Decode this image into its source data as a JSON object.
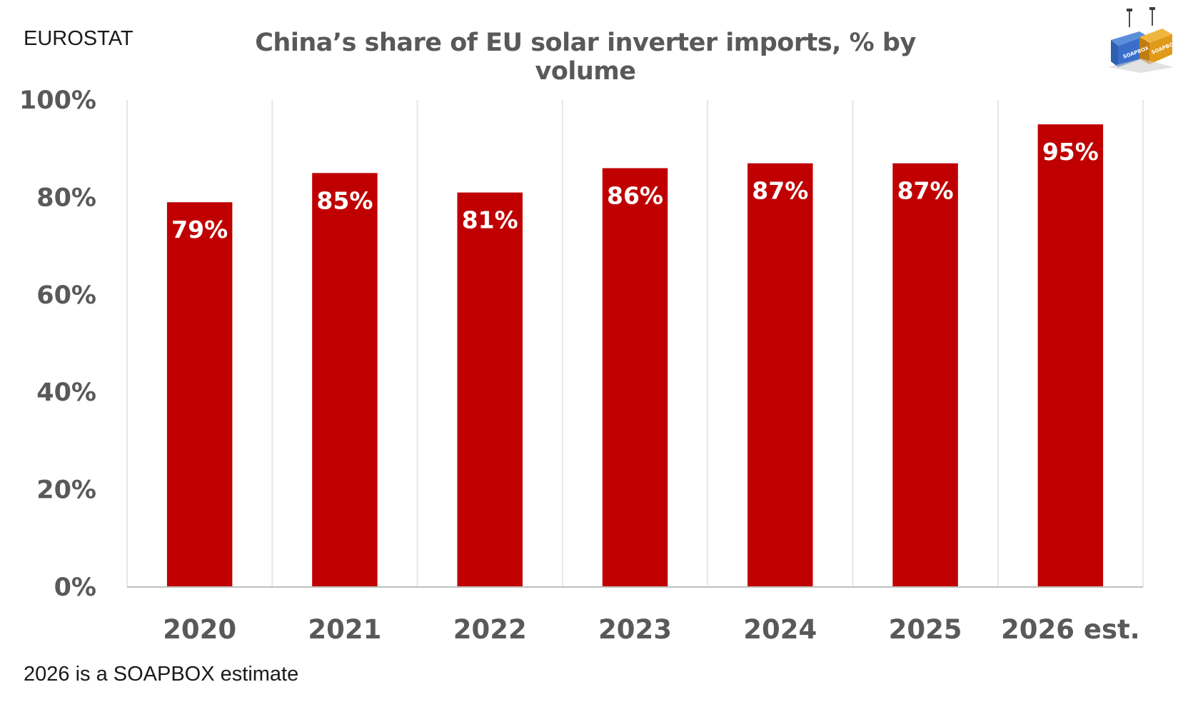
{
  "source_label": "EUROSTAT",
  "footnote": "2026 is a SOAPBOX estimate",
  "logo": {
    "icon": "shipping-containers-crane-icon",
    "text": "SOAPBOX"
  },
  "colors": {
    "bar": "#c00000",
    "grid": "#e6e6e6",
    "axis": "#bfbfbf",
    "text": "#595959"
  },
  "chart_data": {
    "type": "bar",
    "title": "China’s share of EU solar inverter imports, % by volume",
    "categories": [
      "2020",
      "2021",
      "2022",
      "2023",
      "2024",
      "2025",
      "2026 est."
    ],
    "values": [
      79,
      85,
      81,
      86,
      87,
      87,
      95
    ],
    "value_labels": [
      "79%",
      "85%",
      "81%",
      "86%",
      "87%",
      "87%",
      "95%"
    ],
    "ylim": [
      0,
      100
    ],
    "yticks": [
      0,
      20,
      40,
      60,
      80,
      100
    ],
    "ytick_labels": [
      "0%",
      "20%",
      "40%",
      "60%",
      "80%",
      "100%"
    ],
    "xlabel": "",
    "ylabel": "",
    "grid": "vertical",
    "legend": "none"
  }
}
